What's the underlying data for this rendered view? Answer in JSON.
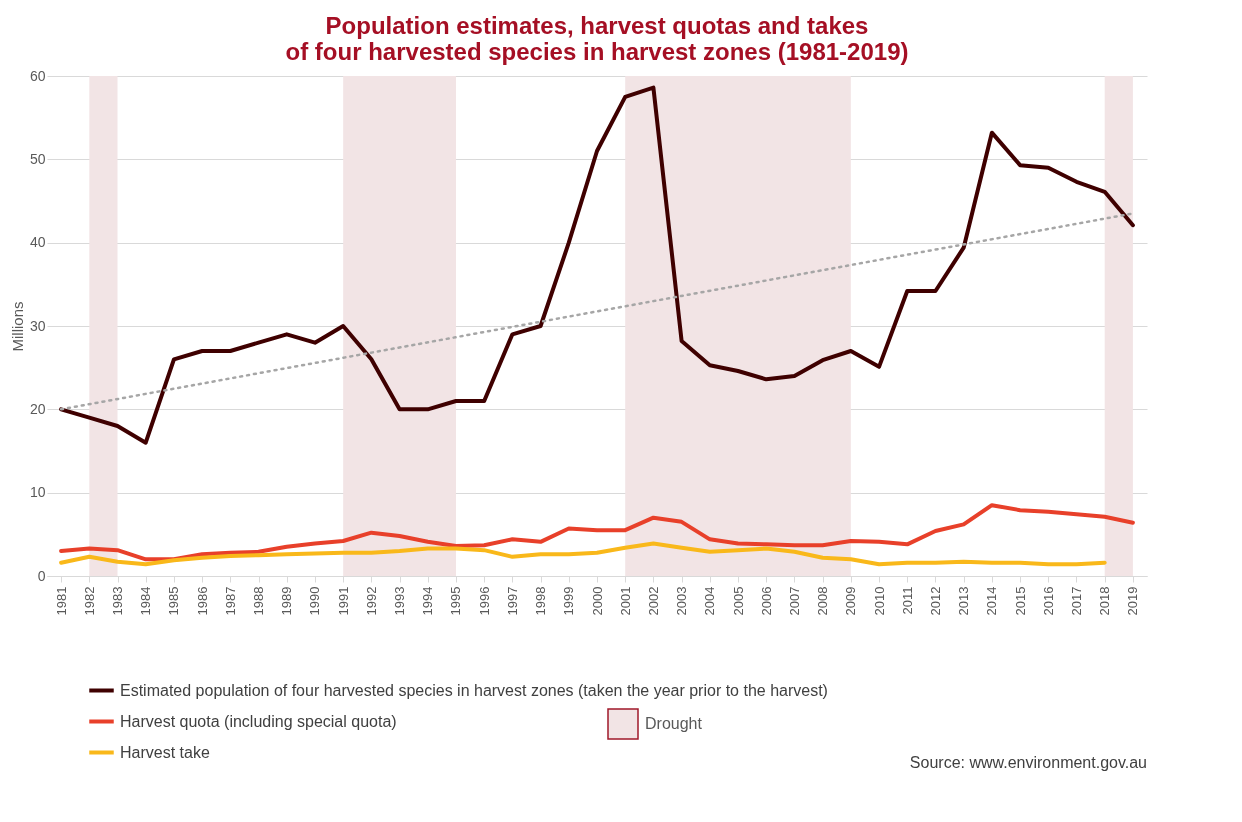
{
  "chart_data": {
    "type": "line",
    "title": [
      "Population estimates, harvest quotas and takes",
      "of four harvested species in harvest zones (1981-2019)"
    ],
    "ylabel": "Millions",
    "x": [
      1981,
      1982,
      1983,
      1984,
      1985,
      1986,
      1987,
      1988,
      1989,
      1990,
      1991,
      1992,
      1993,
      1994,
      1995,
      1996,
      1997,
      1998,
      1999,
      2000,
      2001,
      2002,
      2003,
      2004,
      2005,
      2006,
      2007,
      2008,
      2009,
      2010,
      2011,
      2012,
      2013,
      2014,
      2015,
      2016,
      2017,
      2018,
      2019
    ],
    "series": [
      {
        "name": "Estimated population of four harvested species in harvest zones (taken the year prior to the harvest)",
        "color": "#3f0000",
        "values": [
          20,
          19,
          18,
          16,
          26,
          27,
          27,
          28,
          29,
          28,
          30,
          26,
          20,
          20,
          21,
          21,
          29,
          30,
          40,
          51,
          57.5,
          58.6,
          28.2,
          25.3,
          24.6,
          23.6,
          24,
          25.9,
          27,
          25.1,
          34.2,
          34.2,
          39.4,
          53.2,
          49.3,
          49,
          47.3,
          46.1,
          42.1
        ]
      },
      {
        "name": "Harvest quota (including special quota)",
        "color": "#e8402a",
        "values": [
          3.0,
          3.3,
          3.1,
          2.0,
          2.0,
          2.6,
          2.8,
          2.9,
          3.5,
          3.9,
          4.2,
          5.2,
          4.8,
          4.1,
          3.6,
          3.7,
          4.4,
          4.1,
          5.7,
          5.5,
          5.5,
          7.0,
          6.5,
          4.4,
          3.9,
          3.8,
          3.7,
          3.7,
          4.2,
          4.1,
          3.8,
          5.4,
          6.2,
          8.5,
          7.9,
          7.7,
          7.4,
          7.1,
          6.4
        ]
      },
      {
        "name": "Harvest take",
        "color": "#f9b81a",
        "values": [
          1.6,
          2.3,
          1.7,
          1.4,
          1.9,
          2.2,
          2.4,
          2.5,
          2.6,
          2.7,
          2.8,
          2.8,
          3.0,
          3.3,
          3.3,
          3.1,
          2.3,
          2.6,
          2.6,
          2.8,
          3.4,
          3.9,
          3.4,
          2.9,
          3.1,
          3.3,
          2.9,
          2.2,
          2.0,
          1.4,
          1.6,
          1.6,
          1.7,
          1.6,
          1.6,
          1.4,
          1.4,
          1.6,
          null
        ]
      },
      {
        "type": "line",
        "color": "#a6a6a6",
        "line_style": "dotted",
        "x": [
          1981,
          2019
        ],
        "values": [
          20,
          43.5
        ]
      }
    ],
    "bands": [
      {
        "axis": "x",
        "from": 1982,
        "to": 1983,
        "label": "Drought",
        "color": "#f2e4e5"
      },
      {
        "axis": "x",
        "from": 1991,
        "to": 1995,
        "color": "#f2e4e5"
      },
      {
        "axis": "x",
        "from": 2001,
        "to": 2009,
        "color": "#f2e4e5"
      },
      {
        "axis": "x",
        "from": 2018,
        "to": 2019,
        "color": "#f2e4e5"
      }
    ],
    "xlim": [
      1980.5,
      2019.5
    ],
    "xticks": [
      1981,
      1982,
      1983,
      1984,
      1985,
      1986,
      1987,
      1988,
      1989,
      1990,
      1991,
      1992,
      1993,
      1994,
      1995,
      1996,
      1997,
      1998,
      1999,
      2000,
      2001,
      2002,
      2003,
      2004,
      2005,
      2006,
      2007,
      2008,
      2009,
      2010,
      2011,
      2012,
      2013,
      2014,
      2015,
      2016,
      2017,
      2018,
      2019
    ],
    "ylim": [
      0,
      60
    ],
    "yticks": [
      0,
      10,
      20,
      30,
      40,
      50,
      60
    ],
    "grid": "y",
    "legend": "bottom",
    "line_style": "solid",
    "marker": "none",
    "annotations": [
      "Source: www.environment.gov.au"
    ]
  }
}
